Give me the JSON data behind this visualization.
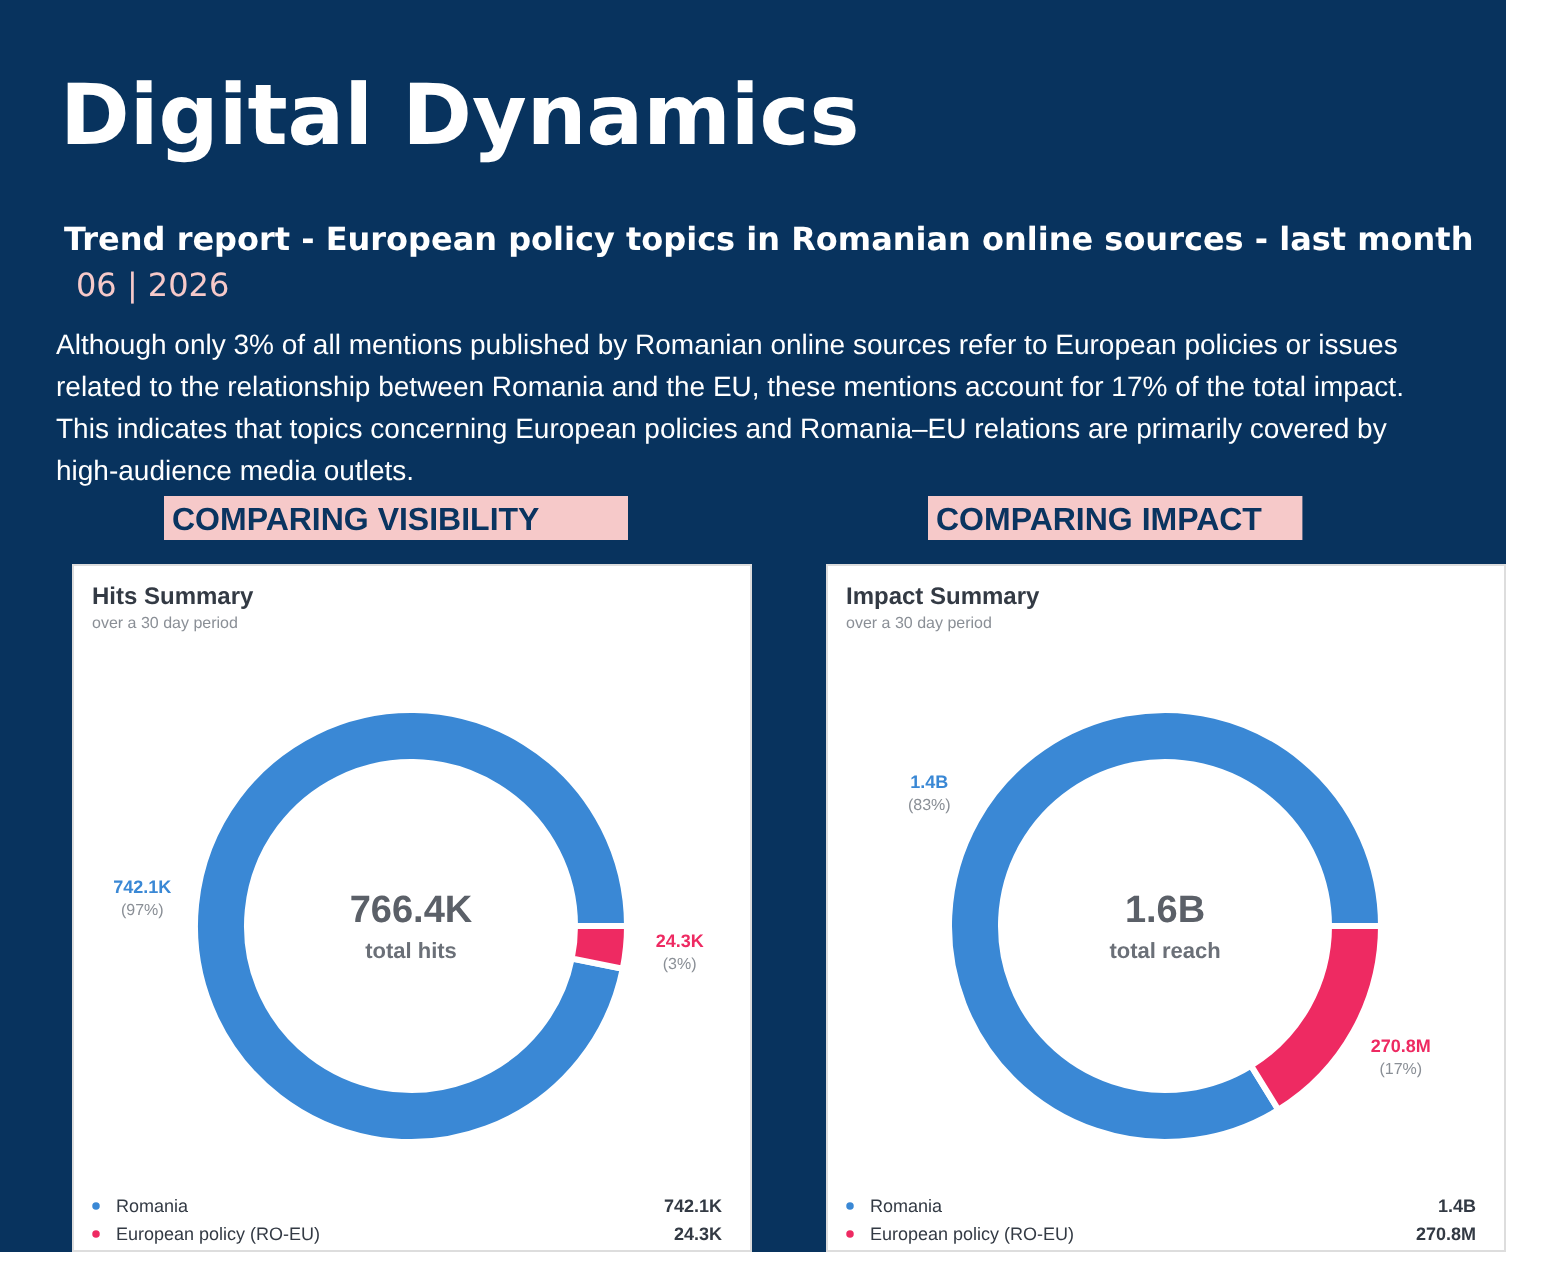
{
  "chart_data": [
    {
      "type": "donut",
      "title": "Hits Summary",
      "subtitle": "over a 30 day period",
      "annotations": [
        "Digital Dynamics",
        "Trend report - European policy topics in Romanian online sources - last month",
        "06 | 2026",
        "Although only 3% of all mentions published by Romanian online sources refer to European policies or issues\nrelated to the relationship between Romania and the EU, these mentions account for 17% of the total impact.\nThis indicates that topics concerning European policies and Romania–EU relations are primarily covered by\nhigh-audience media outlets.",
        "COMPARING VISIBILITY",
        "766.4K",
        "total hits",
        "(97%)",
        "(3%)"
      ],
      "categories": [
        "Romania",
        "European policy (RO-EU)"
      ],
      "values": [
        742100,
        24300
      ],
      "value_labels": [
        "742.1K",
        "24.3K"
      ],
      "colors": [
        "#3a88d5",
        "#ee2a62"
      ],
      "legend": "bottom"
    },
    {
      "type": "donut",
      "title": "Impact Summary",
      "subtitle": "over a 30 day period",
      "annotations": [
        "COMPARING IMPACT",
        "1.6B",
        "total reach",
        "(83%)",
        "(17%)"
      ],
      "categories": [
        "Romania",
        "European policy (RO-EU)"
      ],
      "values": [
        1400000000,
        270800000
      ],
      "value_labels": [
        "1.4B",
        "270.8M"
      ],
      "colors": [
        "#3a88d5",
        "#ee2a62"
      ],
      "legend": "bottom"
    }
  ]
}
